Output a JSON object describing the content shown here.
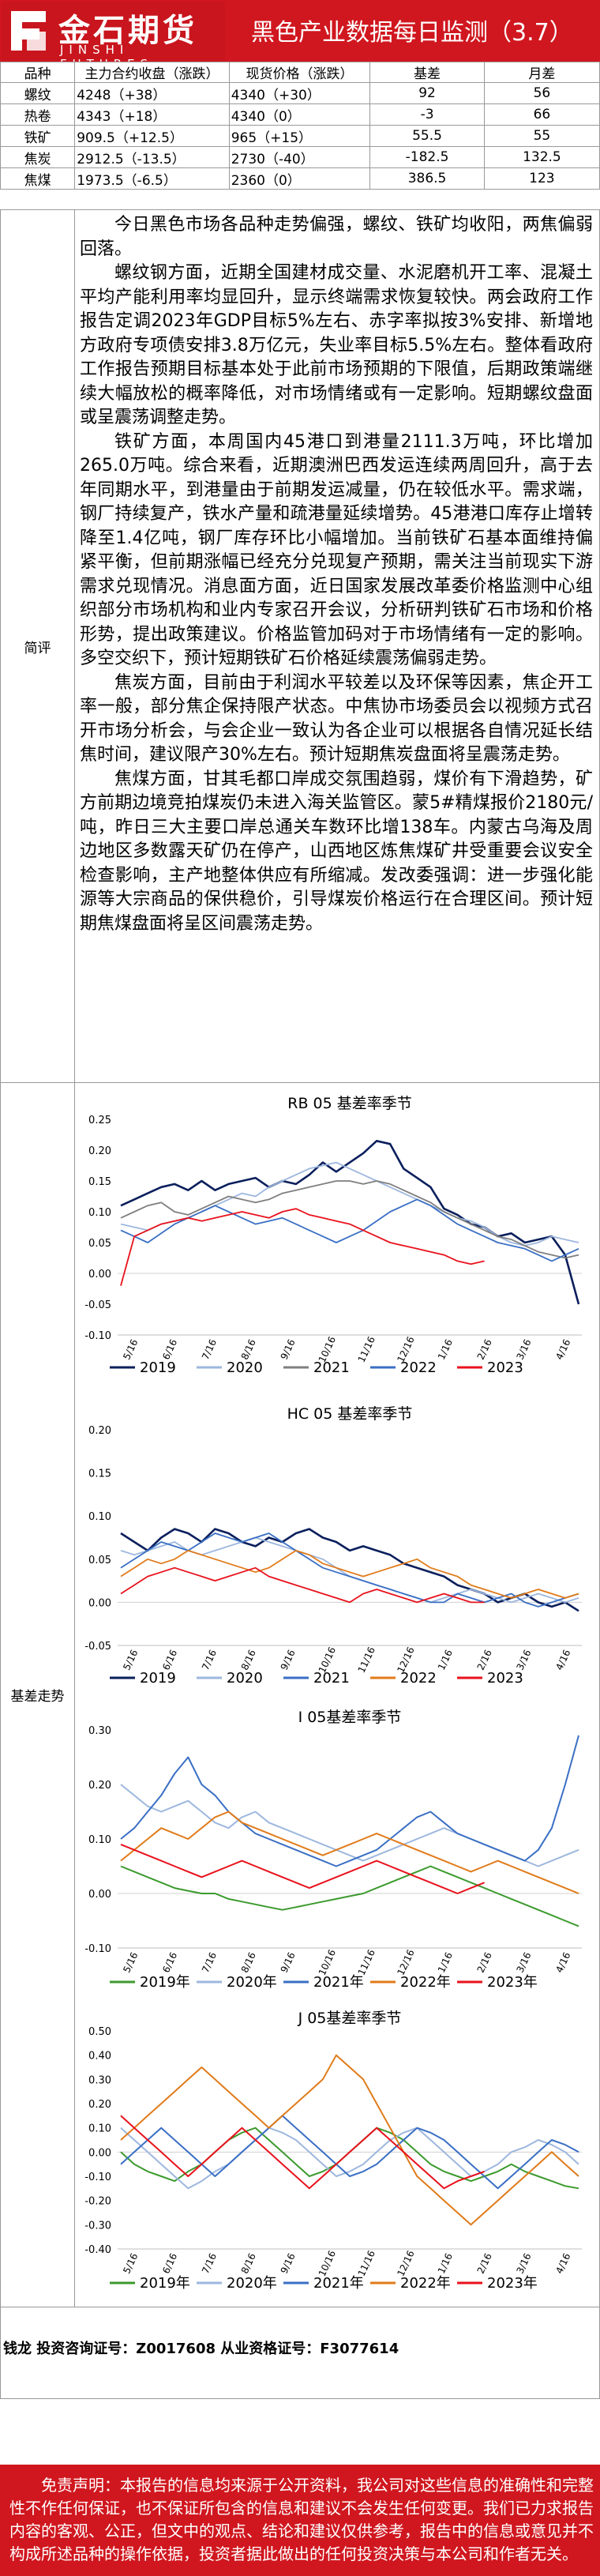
{
  "header": {
    "logo_cn": "金石期货",
    "logo_en": "JINSHI FUTURES",
    "title": "黑色产业数据每日监测（3.7）"
  },
  "table": {
    "headers": [
      "品种",
      "主力合约收盘（涨跌）",
      "现货价格（涨跌）",
      "基差",
      "月差"
    ],
    "rows": [
      [
        "螺纹",
        "4248（+38）",
        "4340（+30）",
        "92",
        "56"
      ],
      [
        "热卷",
        "4343（+18）",
        "4340（0）",
        "-3",
        "66"
      ],
      [
        "铁矿",
        "909.5（+12.5）",
        "965（+15）",
        "55.5",
        "55"
      ],
      [
        "焦炭",
        "2912.5（-13.5）",
        "2730（-40）",
        "-182.5",
        "132.5"
      ],
      [
        "焦煤",
        "1973.5（-6.5）",
        "2360（0）",
        "386.5",
        "123"
      ]
    ]
  },
  "comment": {
    "label": "简评",
    "paragraphs": [
      "今日黑色市场各品种走势偏强，螺纹、铁矿均收阳，两焦偏弱回落。",
      "螺纹钢方面，近期全国建材成交量、水泥磨机开工率、混凝土平均产能利用率均显回升，显示终端需求恢复较快。两会政府工作报告定调2023年GDP目标5%左右、赤字率拟按3%安排、新增地方政府专项债安排3.8万亿元，失业率目标5.5%左右。整体看政府工作报告预期目标基本处于此前市场预期的下限值，后期政策端继续大幅放松的概率降低，对市场情绪或有一定影响。短期螺纹盘面或呈震荡调整走势。",
      "铁矿方面，本周国内45港口到港量2111.3万吨，环比增加265.0万吨。综合来看，近期澳洲巴西发运连续两周回升，高于去年同期水平，到港量由于前期发运减量，仍在较低水平。需求端，钢厂持续复产，铁水产量和疏港量延续增势。45港港口库存止增转降至1.4亿吨，钢厂库存环比小幅增加。当前铁矿石基本面维持偏紧平衡，但前期涨幅已经充分兑现复产预期，需关注当前现实下游需求兑现情况。消息面方面，近日国家发展改革委价格监测中心组织部分市场机构和业内专家召开会议，分析研判铁矿石市场和价格形势，提出政策建议。价格监管加码对于市场情绪有一定的影响。多空交织下，预计短期铁矿石价格延续震荡偏弱走势。",
      "焦炭方面，目前由于利润水平较差以及环保等因素，焦企开工率一般，部分焦企保持限产状态。中焦协市场委员会以视频方式召开市场分析会，与会企业一致认为各企业可以根据各自情况延长结焦时间，建议限产30%左右。预计短期焦炭盘面将呈震荡走势。",
      "焦煤方面，甘其毛都口岸成交氛围趋弱，煤价有下滑趋势，矿方前期边境竞拍煤炭仍未进入海关监管区。蒙5#精煤报价2180元/吨，昨日三大主要口岸总通关车数环比增138车。内蒙古乌海及周边地区多数露天矿仍在停产，山西地区炼焦煤矿井受重要会议安全检查影响，主产地整体供应有所缩减。发改委强调：进一步强化能源等大宗商品的保供稳价，引导煤炭价格运行在合理区间。预计短期焦煤盘面将呈区间震荡走势。"
    ]
  },
  "basis_label": "基差走势",
  "footer": {
    "analyst": "钱龙 投资咨询证号：Z0017608 从业资格证号：F3077614"
  },
  "disclaimer": "免责声明：本报告的信息均来源于公开资料，我公司对这些信息的准确性和完整性不作任何保证，也不保证所包含的信息和建议不会发生任何变更。我们已力求报告内容的客观、公正，但文中的观点、结论和建议仅供参考，报告中的信息或意见并不构成所述品种的操作依据，投资者据此做出的任何投资决策与本公司和作者无关。",
  "colors": {
    "brand_red": "#d0171f",
    "s2019": "#0a1f5c",
    "s2020": "#9db7de",
    "s2021": "#7f7f7f",
    "s2022": "#3a6fc4",
    "s2023": "#e8121c",
    "green": "#3c9a2e",
    "orange": "#e07b1a"
  },
  "chart_data": [
    {
      "type": "line",
      "title": "RB 05 基差率季节",
      "x_ticks": [
        "5/16",
        "6/16",
        "7/16",
        "8/16",
        "9/16",
        "10/16",
        "11/16",
        "12/16",
        "1/16",
        "2/16",
        "3/16",
        "4/16"
      ],
      "ylim": [
        -0.1,
        0.25
      ],
      "y_ticks": [
        "0.25",
        "0.20",
        "0.15",
        "0.10",
        "0.05",
        "0.00",
        "-0.05",
        "-0.10"
      ],
      "series": [
        {
          "name": "2019",
          "color": "#0a1f5c",
          "width": 2.6,
          "values": [
            0.11,
            0.12,
            0.13,
            0.14,
            0.145,
            0.135,
            0.15,
            0.135,
            0.145,
            0.15,
            0.155,
            0.14,
            0.15,
            0.145,
            0.16,
            0.18,
            0.165,
            0.18,
            0.195,
            0.215,
            0.21,
            0.17,
            0.155,
            0.14,
            0.105,
            0.095,
            0.08,
            0.075,
            0.06,
            0.065,
            0.05,
            0.055,
            0.06,
            0.03,
            -0.05
          ]
        },
        {
          "name": "2020",
          "color": "#9db7de",
          "width": 1.8,
          "values": [
            0.08,
            0.075,
            0.07,
            0.08,
            0.085,
            0.09,
            0.1,
            0.11,
            0.12,
            0.13,
            0.125,
            0.14,
            0.15,
            0.16,
            0.17,
            0.175,
            0.18,
            0.17,
            0.16,
            0.15,
            0.14,
            0.13,
            0.12,
            0.11,
            0.1,
            0.09,
            0.085,
            0.075,
            0.06,
            0.05,
            0.045,
            0.05,
            0.06,
            0.055,
            0.05
          ]
        },
        {
          "name": "2021",
          "color": "#7f7f7f",
          "width": 1.8,
          "values": [
            0.09,
            0.1,
            0.11,
            0.115,
            0.1,
            0.095,
            0.105,
            0.115,
            0.125,
            0.12,
            0.115,
            0.12,
            0.13,
            0.135,
            0.14,
            0.145,
            0.15,
            0.15,
            0.145,
            0.15,
            0.145,
            0.135,
            0.125,
            0.115,
            0.1,
            0.09,
            0.08,
            0.07,
            0.06,
            0.055,
            0.045,
            0.035,
            0.03,
            0.025,
            0.03
          ]
        },
        {
          "name": "2022",
          "color": "#3a6fc4",
          "width": 1.8,
          "values": [
            0.07,
            0.06,
            0.05,
            0.065,
            0.08,
            0.09,
            0.1,
            0.11,
            0.1,
            0.09,
            0.08,
            0.085,
            0.09,
            0.08,
            0.07,
            0.06,
            0.05,
            0.06,
            0.07,
            0.085,
            0.1,
            0.11,
            0.12,
            0.11,
            0.095,
            0.08,
            0.07,
            0.06,
            0.05,
            0.045,
            0.04,
            0.03,
            0.02,
            0.03,
            0.04
          ]
        },
        {
          "name": "2023",
          "color": "#e8121c",
          "width": 1.8,
          "values": [
            -0.02,
            0.06,
            0.07,
            0.08,
            0.085,
            0.09,
            0.085,
            0.09,
            0.095,
            0.1,
            0.095,
            0.09,
            0.1,
            0.105,
            0.095,
            0.09,
            0.085,
            0.08,
            0.07,
            0.06,
            0.05,
            0.045,
            0.04,
            0.035,
            0.03,
            0.02,
            0.015,
            0.02
          ]
        }
      ]
    },
    {
      "type": "line",
      "title": "HC 05 基差率季节",
      "x_ticks": [
        "5/16",
        "6/16",
        "7/16",
        "8/16",
        "9/16",
        "10/16",
        "11/16",
        "12/16",
        "1/16",
        "2/16",
        "3/16",
        "4/16"
      ],
      "ylim": [
        -0.05,
        0.2
      ],
      "y_ticks": [
        "0.20",
        "0.15",
        "0.10",
        "0.05",
        "0.00",
        "-0.05"
      ],
      "series": [
        {
          "name": "2019",
          "color": "#0a1f5c",
          "width": 2.6,
          "values": [
            0.08,
            0.07,
            0.06,
            0.075,
            0.085,
            0.08,
            0.07,
            0.085,
            0.08,
            0.07,
            0.065,
            0.075,
            0.07,
            0.08,
            0.085,
            0.075,
            0.07,
            0.06,
            0.065,
            0.06,
            0.055,
            0.045,
            0.04,
            0.035,
            0.03,
            0.02,
            0.015,
            0.01,
            0.0,
            0.005,
            0.01,
            0.0,
            -0.005,
            0.0,
            -0.01
          ]
        },
        {
          "name": "2020",
          "color": "#9db7de",
          "width": 1.8,
          "values": [
            0.06,
            0.055,
            0.06,
            0.065,
            0.07,
            0.06,
            0.055,
            0.06,
            0.065,
            0.07,
            0.075,
            0.07,
            0.065,
            0.06,
            0.055,
            0.05,
            0.04,
            0.03,
            0.025,
            0.02,
            0.015,
            0.01,
            0.005,
            0.0,
            0.005,
            0.01,
            0.015,
            0.01,
            0.005,
            0.0,
            0.005,
            0.01,
            0.005,
            0.0,
            0.005
          ]
        },
        {
          "name": "2021",
          "color": "#3a6fc4",
          "width": 1.8,
          "values": [
            0.04,
            0.05,
            0.06,
            0.07,
            0.065,
            0.06,
            0.07,
            0.08,
            0.075,
            0.07,
            0.075,
            0.08,
            0.07,
            0.06,
            0.05,
            0.04,
            0.035,
            0.03,
            0.025,
            0.02,
            0.015,
            0.01,
            0.005,
            0.0,
            0.0,
            0.01,
            0.005,
            0.0,
            0.005,
            0.01,
            0.0,
            -0.005,
            0.0,
            0.005,
            0.01
          ]
        },
        {
          "name": "2022",
          "color": "#e07b1a",
          "width": 1.8,
          "values": [
            0.03,
            0.04,
            0.05,
            0.045,
            0.05,
            0.06,
            0.055,
            0.05,
            0.045,
            0.04,
            0.035,
            0.04,
            0.05,
            0.06,
            0.055,
            0.045,
            0.04,
            0.035,
            0.03,
            0.035,
            0.04,
            0.045,
            0.05,
            0.04,
            0.035,
            0.03,
            0.02,
            0.015,
            0.01,
            0.005,
            0.01,
            0.015,
            0.01,
            0.005,
            0.01
          ]
        },
        {
          "name": "2023",
          "color": "#e8121c",
          "width": 1.8,
          "values": [
            0.01,
            0.02,
            0.03,
            0.035,
            0.04,
            0.035,
            0.03,
            0.025,
            0.03,
            0.035,
            0.04,
            0.03,
            0.025,
            0.02,
            0.015,
            0.01,
            0.005,
            0.0,
            0.01,
            0.015,
            0.01,
            0.005,
            0.0,
            0.005,
            0.01,
            0.005,
            0.0,
            0.0
          ]
        }
      ]
    },
    {
      "type": "line",
      "title": "I 05基差率季节",
      "x_ticks": [
        "5/16",
        "6/16",
        "7/16",
        "8/16",
        "9/16",
        "10/16",
        "11/16",
        "12/16",
        "1/16",
        "2/16",
        "3/16",
        "4/16"
      ],
      "ylim": [
        -0.1,
        0.3
      ],
      "y_ticks": [
        "0.30",
        "0.20",
        "0.10",
        "0.00",
        "-0.10"
      ],
      "series": [
        {
          "name": "2019年",
          "color": "#3c9a2e",
          "width": 2,
          "values": [
            0.05,
            0.04,
            0.03,
            0.02,
            0.01,
            0.005,
            0.0,
            0.0,
            -0.01,
            -0.015,
            -0.02,
            -0.025,
            -0.03,
            -0.025,
            -0.02,
            -0.015,
            -0.01,
            -0.005,
            0.0,
            0.01,
            0.02,
            0.03,
            0.04,
            0.05,
            0.04,
            0.03,
            0.02,
            0.01,
            0.0,
            -0.01,
            -0.02,
            -0.03,
            -0.04,
            -0.05,
            -0.06
          ]
        },
        {
          "name": "2020年",
          "color": "#9db7de",
          "width": 2,
          "values": [
            0.2,
            0.18,
            0.16,
            0.15,
            0.16,
            0.17,
            0.15,
            0.13,
            0.12,
            0.14,
            0.15,
            0.13,
            0.12,
            0.11,
            0.1,
            0.09,
            0.08,
            0.07,
            0.06,
            0.07,
            0.08,
            0.09,
            0.1,
            0.11,
            0.12,
            0.11,
            0.1,
            0.09,
            0.08,
            0.07,
            0.06,
            0.05,
            0.06,
            0.07,
            0.08
          ]
        },
        {
          "name": "2021年",
          "color": "#3a6fc4",
          "width": 2,
          "values": [
            0.1,
            0.12,
            0.15,
            0.18,
            0.22,
            0.25,
            0.2,
            0.18,
            0.15,
            0.13,
            0.11,
            0.1,
            0.09,
            0.08,
            0.07,
            0.06,
            0.05,
            0.06,
            0.07,
            0.08,
            0.1,
            0.12,
            0.14,
            0.15,
            0.13,
            0.11,
            0.1,
            0.09,
            0.08,
            0.07,
            0.06,
            0.08,
            0.12,
            0.2,
            0.29
          ]
        },
        {
          "name": "2022年",
          "color": "#e07b1a",
          "width": 2,
          "values": [
            0.06,
            0.08,
            0.1,
            0.12,
            0.11,
            0.1,
            0.12,
            0.14,
            0.15,
            0.13,
            0.12,
            0.11,
            0.1,
            0.09,
            0.08,
            0.07,
            0.08,
            0.09,
            0.1,
            0.11,
            0.1,
            0.09,
            0.08,
            0.07,
            0.06,
            0.05,
            0.04,
            0.05,
            0.06,
            0.05,
            0.04,
            0.03,
            0.02,
            0.01,
            0.0
          ]
        },
        {
          "name": "2023年",
          "color": "#e8121c",
          "width": 2,
          "values": [
            0.09,
            0.08,
            0.07,
            0.06,
            0.05,
            0.04,
            0.03,
            0.04,
            0.05,
            0.06,
            0.05,
            0.04,
            0.03,
            0.02,
            0.01,
            0.02,
            0.03,
            0.04,
            0.05,
            0.06,
            0.05,
            0.04,
            0.03,
            0.02,
            0.01,
            0.0,
            0.01,
            0.02
          ]
        }
      ]
    },
    {
      "type": "line",
      "title": "J 05基差率季节",
      "x_ticks": [
        "5/16",
        "6/16",
        "7/16",
        "8/16",
        "9/16",
        "10/16",
        "11/16",
        "12/16",
        "1/16",
        "2/16",
        "3/16",
        "4/16"
      ],
      "ylim": [
        -0.4,
        0.5
      ],
      "y_ticks": [
        "0.50",
        "0.40",
        "0.30",
        "0.20",
        "0.10",
        "0.00",
        "-0.10",
        "-0.20",
        "-0.30",
        "-0.40"
      ],
      "series": [
        {
          "name": "2019年",
          "color": "#3c9a2e",
          "width": 2,
          "values": [
            0.0,
            -0.05,
            -0.08,
            -0.1,
            -0.12,
            -0.08,
            -0.05,
            0.0,
            0.05,
            0.08,
            0.1,
            0.05,
            0.0,
            -0.05,
            -0.1,
            -0.08,
            -0.05,
            0.0,
            0.05,
            0.1,
            0.08,
            0.05,
            0.0,
            -0.05,
            -0.08,
            -0.1,
            -0.12,
            -0.1,
            -0.08,
            -0.05,
            -0.08,
            -0.1,
            -0.12,
            -0.14,
            -0.15
          ]
        },
        {
          "name": "2020年",
          "color": "#9db7de",
          "width": 2,
          "values": [
            0.1,
            0.05,
            0.0,
            -0.05,
            -0.1,
            -0.15,
            -0.12,
            -0.08,
            -0.05,
            0.0,
            0.05,
            0.1,
            0.08,
            0.05,
            0.0,
            -0.05,
            -0.1,
            -0.08,
            -0.05,
            0.0,
            0.05,
            0.08,
            0.1,
            0.05,
            0.0,
            -0.05,
            -0.1,
            -0.08,
            -0.05,
            0.0,
            0.02,
            0.05,
            0.03,
            0.0,
            -0.05
          ]
        },
        {
          "name": "2021年",
          "color": "#3a6fc4",
          "width": 2,
          "values": [
            -0.05,
            0.0,
            0.05,
            0.1,
            0.05,
            0.0,
            -0.05,
            -0.1,
            -0.05,
            0.0,
            0.05,
            0.1,
            0.15,
            0.1,
            0.05,
            0.0,
            -0.05,
            -0.1,
            -0.08,
            -0.05,
            0.0,
            0.05,
            0.1,
            0.08,
            0.05,
            0.0,
            -0.05,
            -0.1,
            -0.15,
            -0.1,
            -0.05,
            0.0,
            0.05,
            0.03,
            0.0
          ]
        },
        {
          "name": "2022年",
          "color": "#e07b1a",
          "width": 2,
          "values": [
            0.05,
            0.1,
            0.15,
            0.2,
            0.25,
            0.3,
            0.35,
            0.3,
            0.25,
            0.2,
            0.15,
            0.1,
            0.15,
            0.2,
            0.25,
            0.3,
            0.4,
            0.35,
            0.3,
            0.2,
            0.1,
            0.0,
            -0.1,
            -0.15,
            -0.2,
            -0.25,
            -0.3,
            -0.25,
            -0.2,
            -0.15,
            -0.1,
            -0.05,
            0.0,
            -0.05,
            -0.1
          ]
        },
        {
          "name": "2023年",
          "color": "#e8121c",
          "width": 2,
          "values": [
            0.15,
            0.1,
            0.05,
            0.0,
            -0.05,
            -0.1,
            -0.05,
            0.0,
            0.05,
            0.1,
            0.05,
            0.0,
            -0.05,
            -0.1,
            -0.15,
            -0.1,
            -0.05,
            0.0,
            0.05,
            0.1,
            0.05,
            0.0,
            -0.05,
            -0.1,
            -0.15,
            -0.12,
            -0.1,
            -0.08
          ]
        }
      ]
    }
  ]
}
